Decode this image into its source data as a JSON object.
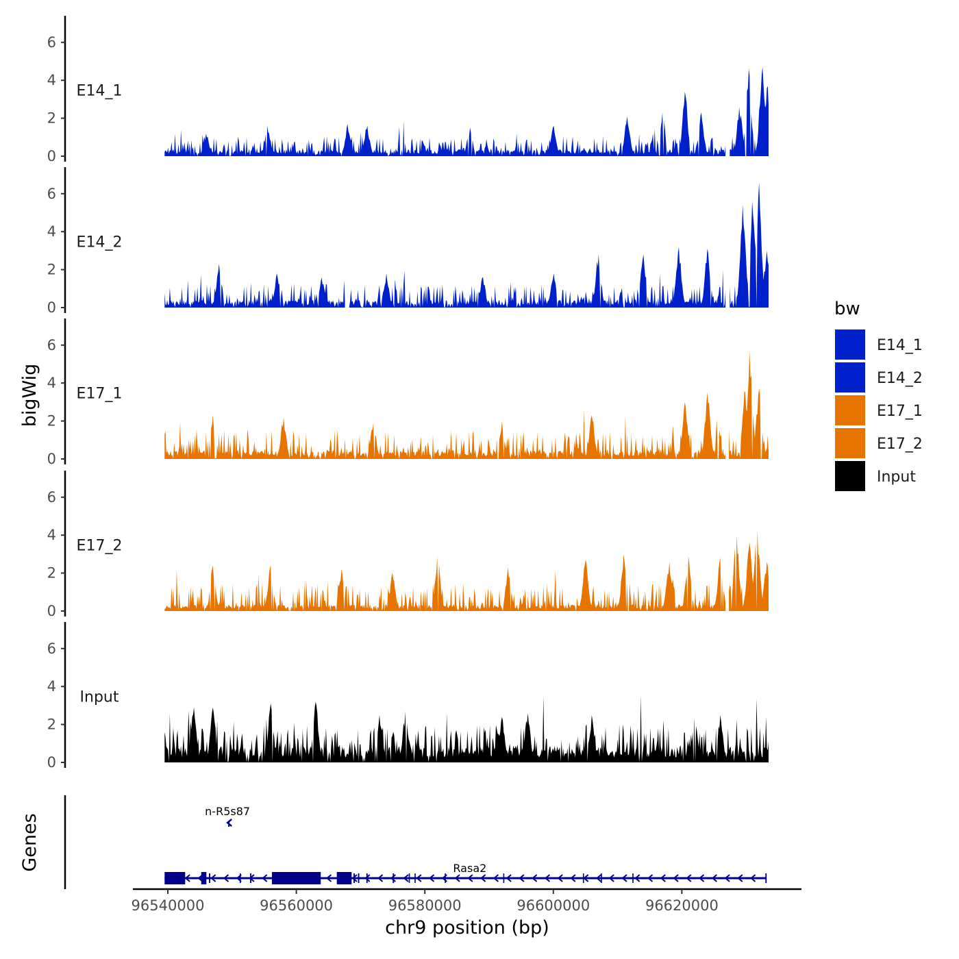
{
  "chart_data": {
    "type": "area",
    "chromosome": "chr9",
    "xlabel": "chr9 position (bp)",
    "ylabel": "bigWig",
    "genes_label": "Genes",
    "xlim": [
      96536000,
      96637000
    ],
    "x_ticks": [
      96540000,
      96560000,
      96580000,
      96600000,
      96620000
    ],
    "x_tick_labels": [
      "96540000",
      "96560000",
      "96580000",
      "96600000",
      "96620000"
    ],
    "ylim": [
      0,
      7
    ],
    "y_ticks": [
      0,
      2,
      4,
      6
    ],
    "y_tick_labels": [
      "0",
      "2",
      "4",
      "6"
    ],
    "data_range": [
      96539500,
      96633500
    ],
    "legend": {
      "title": "bw",
      "entries": [
        {
          "label": "E14_1",
          "color": "#0020cc"
        },
        {
          "label": "E14_2",
          "color": "#0020cc"
        },
        {
          "label": "E17_1",
          "color": "#e87400"
        },
        {
          "label": "E17_2",
          "color": "#e87400"
        },
        {
          "label": "Input",
          "color": "#000000"
        }
      ]
    },
    "tracks": [
      {
        "name": "E14_1",
        "color": "#0020cc",
        "seed": 11,
        "base": 0.35,
        "noise": 0.55,
        "gaps": [
          [
            96626800,
            96627400
          ]
        ],
        "peaks": [
          [
            96546000,
            1.2
          ],
          [
            96555500,
            1.6
          ],
          [
            96568000,
            1.7
          ],
          [
            96571000,
            1.6
          ],
          [
            96587000,
            1.5
          ],
          [
            96600000,
            1.6
          ],
          [
            96611500,
            2.1
          ],
          [
            96617000,
            2.3
          ],
          [
            96620500,
            3.4
          ],
          [
            96623000,
            2.3
          ],
          [
            96629000,
            2.6
          ],
          [
            96630400,
            4.6
          ],
          [
            96632500,
            4.7
          ],
          [
            96633300,
            3.7
          ]
        ]
      },
      {
        "name": "E14_2",
        "color": "#0020cc",
        "seed": 23,
        "base": 0.4,
        "noise": 0.7,
        "gaps": [
          [
            96567600,
            96568200
          ],
          [
            96626800,
            96627400
          ]
        ],
        "peaks": [
          [
            96548000,
            2.3
          ],
          [
            96557000,
            1.8
          ],
          [
            96564000,
            1.6
          ],
          [
            96574000,
            1.8
          ],
          [
            96589000,
            1.6
          ],
          [
            96600000,
            1.8
          ],
          [
            96607000,
            2.8
          ],
          [
            96614000,
            2.8
          ],
          [
            96619500,
            3.2
          ],
          [
            96624000,
            3.1
          ],
          [
            96629500,
            5.4
          ],
          [
            96631000,
            5.6
          ],
          [
            96632000,
            6.6
          ],
          [
            96633200,
            3.0
          ]
        ]
      },
      {
        "name": "E17_1",
        "color": "#e87400",
        "seed": 37,
        "base": 0.45,
        "noise": 0.85,
        "gaps": [
          [
            96626800,
            96627200
          ]
        ],
        "peaks": [
          [
            96547000,
            2.3
          ],
          [
            96558000,
            2.2
          ],
          [
            96572000,
            1.9
          ],
          [
            96592000,
            2.0
          ],
          [
            96606000,
            2.3
          ],
          [
            96620500,
            3.0
          ],
          [
            96624000,
            3.5
          ],
          [
            96629800,
            3.6
          ],
          [
            96630600,
            5.7
          ],
          [
            96632000,
            3.7
          ]
        ]
      },
      {
        "name": "E17_2",
        "color": "#e87400",
        "seed": 53,
        "base": 0.35,
        "noise": 0.85,
        "gaps": [
          [
            96626900,
            96627300
          ]
        ],
        "peaks": [
          [
            96547000,
            2.4
          ],
          [
            96556000,
            2.4
          ],
          [
            96567000,
            2.2
          ],
          [
            96575000,
            2.0
          ],
          [
            96582000,
            2.9
          ],
          [
            96593000,
            2.3
          ],
          [
            96605000,
            2.7
          ],
          [
            96611000,
            3.0
          ],
          [
            96618000,
            2.6
          ],
          [
            96621000,
            2.9
          ],
          [
            96626000,
            2.8
          ],
          [
            96628500,
            4.0
          ],
          [
            96630500,
            3.6
          ],
          [
            96631700,
            4.3
          ],
          [
            96633200,
            2.6
          ]
        ]
      },
      {
        "name": "Input",
        "color": "#000000",
        "seed": 71,
        "base": 0.85,
        "noise": 1.05,
        "gaps": [],
        "peaks": [
          [
            96544000,
            2.9
          ],
          [
            96547000,
            2.9
          ],
          [
            96556000,
            3.1
          ],
          [
            96563000,
            3.2
          ],
          [
            96573000,
            2.5
          ],
          [
            96577000,
            2.7
          ],
          [
            96592000,
            2.4
          ],
          [
            96596000,
            2.6
          ],
          [
            96606000,
            2.5
          ],
          [
            96622000,
            2.4
          ],
          [
            96626000,
            2.5
          ]
        ]
      }
    ],
    "genes": [
      {
        "name": "Rasa2",
        "strand": "-",
        "start": 96539500,
        "end": 96633100,
        "color": "#00008b",
        "exons": [
          [
            96539500,
            96542700
          ],
          [
            96545200,
            96546000
          ],
          [
            96556200,
            96563800
          ],
          [
            96566300,
            96568600
          ],
          [
            96546400,
            96546600
          ],
          [
            96551200,
            96551350
          ],
          [
            96552800,
            96553000
          ],
          [
            96568900,
            96569100
          ],
          [
            96569600,
            96569800
          ],
          [
            96570900,
            96571100
          ],
          [
            96575000,
            96575200
          ],
          [
            96577500,
            96577600
          ],
          [
            96578400,
            96578500
          ],
          [
            96583100,
            96583250
          ],
          [
            96592200,
            96592350
          ],
          [
            96604600,
            96604750
          ],
          [
            96607400,
            96607550
          ],
          [
            96612300,
            96612400
          ],
          [
            96633000,
            96633200
          ]
        ]
      },
      {
        "name": "n-R5s87",
        "strand": "-",
        "start": 96549300,
        "end": 96549700,
        "color": "#00008b",
        "exons": []
      }
    ]
  }
}
